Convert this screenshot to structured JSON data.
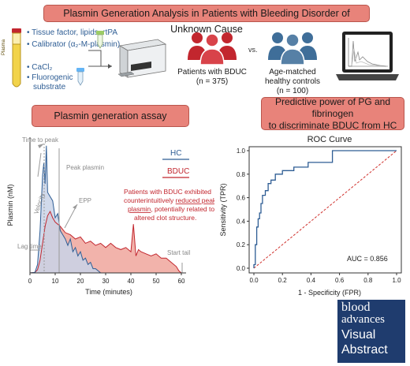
{
  "header": {
    "title": "Plasmin Generation Analysis in Patients with Bleeding Disorder of Unknown Cause"
  },
  "reagents": {
    "tube_label": "Plasma",
    "tf": "• Tissue factor, lipids, rtPA",
    "calibrator": "• Calibrator (α₂-M-plasmin)",
    "cacl2": "• CaCl₂",
    "substrate_1": "• Fluorogenic",
    "substrate_2": "substrate"
  },
  "groups": {
    "bduc_label": "Patients with BDUC",
    "bduc_n": "(n = 375)",
    "vs": "vs.",
    "hc_label_1": "Age-matched",
    "hc_label_2": "healthy controls",
    "hc_n": "(n = 100)"
  },
  "assay": {
    "banner": "Plasmin generation assay",
    "legend_hc": "HC",
    "legend_bduc": "BDUC",
    "finding_1": "Patients with BDUC exhibited",
    "finding_2a": "counterintuitively ",
    "finding_2b": "reduced peak",
    "finding_3a": "plasmin",
    "finding_3b": ", potentially related to",
    "finding_4": "altered clot structure.",
    "annotations": {
      "time_to_peak": "Time to peak",
      "peak_plasmin": "Peak plasmin",
      "velocity": "Velocity",
      "epp": "EPP",
      "lag_time": "Lag time",
      "start_tail": "Start tail"
    }
  },
  "predictive": {
    "banner_1": "Predictive power of PG and fibrinogen",
    "banner_2": "to discriminate BDUC from HC"
  },
  "brand": {
    "line1": "blood",
    "line2": "advances",
    "line3": "Visual",
    "line4": "Abstract"
  },
  "colors": {
    "banner": "#e8837a",
    "hc": "#2e5d94",
    "bduc": "#c2262e",
    "roc": "#2e5d94",
    "chance": "#d0312d"
  },
  "chart_data": [
    {
      "type": "area",
      "xlabel": "Time (minutes)",
      "ylabel": "Plasmin (nM)",
      "xlim": [
        0,
        60
      ],
      "x_ticks": [
        "0",
        "10",
        "20",
        "30",
        "40",
        "50",
        "60"
      ],
      "series": [
        {
          "name": "HC",
          "x": [
            0,
            2,
            3,
            4,
            5,
            5.5,
            6,
            6.5,
            7,
            8,
            9,
            10,
            11,
            12,
            13,
            14,
            15,
            16,
            17,
            18,
            19,
            20,
            21,
            22,
            23,
            24,
            25,
            26,
            27,
            28
          ],
          "y": [
            0,
            0.3,
            4,
            20,
            46,
            52,
            42,
            60,
            38,
            36,
            34,
            26,
            28,
            20,
            18,
            16,
            13,
            16,
            10,
            12,
            8,
            10,
            6,
            7,
            4,
            5,
            2,
            2,
            1,
            0
          ]
        },
        {
          "name": "BDUC",
          "x": [
            0,
            2,
            3,
            4,
            5,
            6,
            7,
            8,
            9,
            10,
            12,
            14,
            16,
            18,
            20,
            22,
            24,
            26,
            28,
            30,
            32,
            34,
            36,
            38,
            40,
            41,
            42,
            43,
            44,
            46,
            48,
            50,
            52,
            54,
            56,
            58,
            59,
            60
          ],
          "y": [
            0,
            0.3,
            1.5,
            6,
            14,
            22,
            27,
            29,
            26,
            24,
            22,
            19,
            18,
            16,
            17,
            14,
            15,
            13,
            14,
            12,
            14,
            12,
            11,
            12,
            10,
            23,
            8,
            11,
            10,
            9,
            8,
            9,
            7,
            7,
            5,
            3,
            1,
            0
          ]
        }
      ]
    },
    {
      "type": "line",
      "title": "ROC Curve",
      "xlabel": "1 - Specificity (FPR)",
      "ylabel": "Sensitivity (TPR)",
      "xlim": [
        0,
        1
      ],
      "ylim": [
        0,
        1
      ],
      "x_ticks": [
        "0.0",
        "0.2",
        "0.4",
        "0.6",
        "0.8",
        "1.0"
      ],
      "y_ticks": [
        "0.0",
        "0.2",
        "0.4",
        "0.6",
        "0.8",
        "1.0"
      ],
      "annotation": "AUC = 0.856",
      "series": [
        {
          "x": [
            0,
            0,
            0.01,
            0.01,
            0.02,
            0.02,
            0.03,
            0.03,
            0.04,
            0.04,
            0.05,
            0.05,
            0.06,
            0.06,
            0.08,
            0.08,
            0.1,
            0.1,
            0.12,
            0.12,
            0.15,
            0.15,
            0.2,
            0.2,
            0.28,
            0.28,
            0.38,
            0.38,
            0.55,
            0.55,
            1.0
          ],
          "y": [
            0,
            0.03,
            0.03,
            0.2,
            0.2,
            0.35,
            0.35,
            0.42,
            0.42,
            0.47,
            0.47,
            0.55,
            0.55,
            0.62,
            0.62,
            0.66,
            0.66,
            0.72,
            0.72,
            0.75,
            0.75,
            0.8,
            0.8,
            0.83,
            0.83,
            0.86,
            0.86,
            0.9,
            0.9,
            1.0,
            1.0
          ]
        },
        {
          "x": [
            0,
            1
          ],
          "y": [
            0,
            1
          ]
        }
      ]
    }
  ]
}
